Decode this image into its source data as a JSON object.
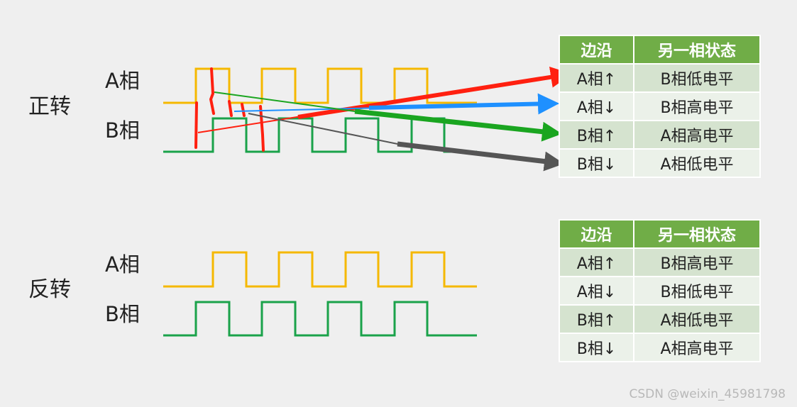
{
  "forward": {
    "title": "正转",
    "a_label": "A相",
    "b_label": "B相",
    "table": {
      "headers": [
        "边沿",
        "另一相状态"
      ],
      "rows": [
        [
          "A相↑",
          "B相低电平"
        ],
        [
          "A相↓",
          "B相高电平"
        ],
        [
          "B相↑",
          "A相高电平"
        ],
        [
          "B相↓",
          "A相低电平"
        ]
      ]
    }
  },
  "reverse": {
    "title": "反转",
    "a_label": "A相",
    "b_label": "B相",
    "table": {
      "headers": [
        "边沿",
        "另一相状态"
      ],
      "rows": [
        [
          "A相↑",
          "B相高电平"
        ],
        [
          "A相↓",
          "B相低电平"
        ],
        [
          "B相↑",
          "A相低电平"
        ],
        [
          "B相↓",
          "A相高电平"
        ]
      ]
    }
  },
  "colors": {
    "phase_a": "#f5b800",
    "phase_b": "#1aa24a",
    "header_bg": "#70ad47",
    "arrow_red": "#ff2010",
    "arrow_blue": "#1e90ff",
    "arrow_green": "#1aa520",
    "arrow_gray": "#555555"
  },
  "watermark": "CSDN @weixin_45981798"
}
